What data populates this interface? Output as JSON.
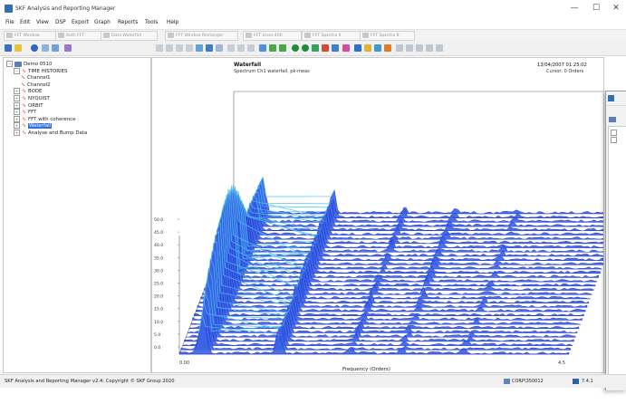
{
  "window": {
    "title": "SKF Analysis and Reporting Manager",
    "minimize": "—",
    "maximize": "☐",
    "close": "✕"
  },
  "menu": [
    "File",
    "Edit",
    "View",
    "DSP",
    "Export",
    "Graph",
    "Reports",
    "Tools",
    "Help"
  ],
  "toolbar1": {
    "buttons": [
      "FFT Window",
      "Both FFT",
      "Data Waterfall",
      "FFT Window Rectangle",
      "FFT Lines 400",
      "FFT Spectra 4",
      "FFT Spectra 8"
    ]
  },
  "tree": {
    "items": [
      {
        "label": "Demo 0510",
        "level": 0,
        "exp": "−",
        "icon": "folder"
      },
      {
        "label": "TIME HISTORIES",
        "level": 1,
        "exp": "−",
        "icon": "wave"
      },
      {
        "label": "Channel1",
        "level": 2,
        "exp": "",
        "icon": "wave"
      },
      {
        "label": "Channel2",
        "level": 2,
        "exp": "",
        "icon": "wave"
      },
      {
        "label": "BODE",
        "level": 1,
        "exp": "+",
        "icon": "wave"
      },
      {
        "label": "NYQUIST",
        "level": 1,
        "exp": "+",
        "icon": "wave"
      },
      {
        "label": "ORBIT",
        "level": 1,
        "exp": "+",
        "icon": "wave"
      },
      {
        "label": "FFT",
        "level": 1,
        "exp": "+",
        "icon": "wave"
      },
      {
        "label": "FFT with coherence",
        "level": 1,
        "exp": "+",
        "icon": "wave"
      },
      {
        "label": "Waterfall",
        "level": 1,
        "exp": "+",
        "icon": "wave",
        "selected": true
      },
      {
        "label": "Analyse and Bump Data",
        "level": 1,
        "exp": "+",
        "icon": "wave"
      }
    ]
  },
  "graph": {
    "title": "Waterfall",
    "subtitle": "Spectrum Ch1 waterfall, pk-meas",
    "date": "13/04/2007 01:25:02",
    "cursor": "Cursor: 0 Orders",
    "xlabel": "Frequency (Orders)",
    "x_start": "0.00",
    "x_end": "4.5",
    "yticks": [
      "50.0",
      "45.0",
      "40.0",
      "35.0",
      "30.0",
      "25.0",
      "20.0",
      "15.0",
      "10.0",
      "5.0",
      "0.0"
    ]
  },
  "statusbar": {
    "text": "SKF Analysis and Reporting Manager v2.4: Copyright © SKF Group 2020",
    "user": "CORP\\350012",
    "version": "7.4.1"
  },
  "colors": {
    "surface_dark": "#1a2fd0",
    "surface_mid": "#3c63e6",
    "surface_peak": "#49c3f0",
    "selection": "#2f6fe0"
  }
}
